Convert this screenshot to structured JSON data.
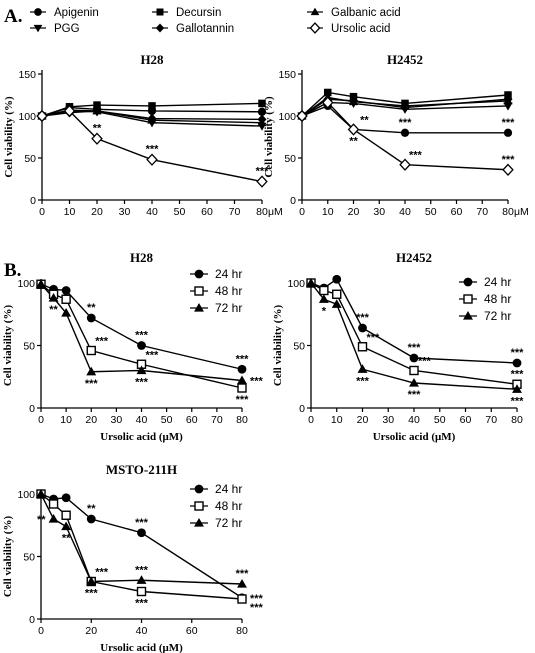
{
  "panel_labels": {
    "a": "A.",
    "b": "B."
  },
  "legend_a": [
    {
      "name": "Apigenin",
      "marker": "circle"
    },
    {
      "name": "Decursin",
      "marker": "square"
    },
    {
      "name": "Galbanic acid",
      "marker": "triangle-up"
    },
    {
      "name": "PGG",
      "marker": "triangle-down"
    },
    {
      "name": "Gallotannin",
      "marker": "diamond"
    },
    {
      "name": "Ursolic acid",
      "marker": "diamond-open"
    }
  ],
  "legend_b": [
    {
      "name": "24 hr",
      "marker": "circle"
    },
    {
      "name": "48 hr",
      "marker": "square-open"
    },
    {
      "name": "72 hr",
      "marker": "triangle-up"
    }
  ],
  "chart_data": [
    {
      "type": "line",
      "title": "H28",
      "ylabel": "Cell viability (%)",
      "xlabel": "",
      "x_unit": "μM",
      "x": [
        0,
        10,
        20,
        40,
        80
      ],
      "xticks": [
        "0",
        "10",
        "20",
        "30",
        "40",
        "50",
        "60",
        "70",
        "80"
      ],
      "yticks": [
        "0",
        "50",
        "100",
        "150"
      ],
      "xlim": [
        0,
        80
      ],
      "ylim": [
        0,
        150
      ],
      "series": [
        {
          "name": "Apigenin",
          "marker": "circle",
          "values": [
            100,
            110,
            108,
            106,
            105
          ]
        },
        {
          "name": "Decursin",
          "marker": "square",
          "values": [
            100,
            111,
            113,
            112,
            115
          ]
        },
        {
          "name": "Galbanic acid",
          "marker": "triangle-up",
          "values": [
            100,
            107,
            106,
            95,
            92
          ]
        },
        {
          "name": "PGG",
          "marker": "triangle-down",
          "values": [
            100,
            106,
            105,
            92,
            88
          ]
        },
        {
          "name": "Gallotannin",
          "marker": "diamond",
          "values": [
            100,
            104,
            106,
            97,
            96
          ]
        },
        {
          "name": "Ursolic acid",
          "marker": "diamond-open",
          "values": [
            100,
            106,
            73,
            48,
            22
          ]
        }
      ],
      "annotations": [
        {
          "x": 20,
          "y": 73,
          "text": "**",
          "pos": "above"
        },
        {
          "x": 40,
          "y": 48,
          "text": "***",
          "pos": "above"
        },
        {
          "x": 80,
          "y": 22,
          "text": "***",
          "pos": "above"
        }
      ]
    },
    {
      "type": "line",
      "title": "H2452",
      "ylabel": "Cell viability (%)",
      "xlabel": "",
      "x_unit": "μM",
      "x": [
        0,
        10,
        20,
        40,
        80
      ],
      "xticks": [
        "0",
        "10",
        "20",
        "30",
        "40",
        "50",
        "60",
        "70",
        "80"
      ],
      "yticks": [
        "0",
        "50",
        "100",
        "150"
      ],
      "xlim": [
        0,
        80
      ],
      "ylim": [
        0,
        150
      ],
      "series": [
        {
          "name": "Apigenin",
          "marker": "circle",
          "values": [
            100,
            112,
            84,
            80,
            80
          ]
        },
        {
          "name": "Decursin",
          "marker": "square",
          "values": [
            100,
            128,
            123,
            115,
            125
          ]
        },
        {
          "name": "Galbanic acid",
          "marker": "triangle-up",
          "values": [
            100,
            122,
            117,
            112,
            118
          ]
        },
        {
          "name": "PGG",
          "marker": "triangle-down",
          "values": [
            100,
            116,
            115,
            108,
            112
          ]
        },
        {
          "name": "Gallotannin",
          "marker": "diamond",
          "values": [
            100,
            120,
            118,
            110,
            120
          ]
        },
        {
          "name": "Ursolic acid",
          "marker": "diamond-open",
          "values": [
            100,
            116,
            84,
            42,
            36
          ]
        }
      ],
      "annotations": [
        {
          "x": 21,
          "y": 84,
          "text": "**",
          "pos": "above-right"
        },
        {
          "x": 20,
          "y": 84,
          "text": "**",
          "pos": "below"
        },
        {
          "x": 40,
          "y": 80,
          "text": "***",
          "pos": "above"
        },
        {
          "x": 80,
          "y": 80,
          "text": "***",
          "pos": "above"
        },
        {
          "x": 40,
          "y": 42,
          "text": "***",
          "pos": "above-right"
        },
        {
          "x": 80,
          "y": 36,
          "text": "***",
          "pos": "above"
        }
      ]
    },
    {
      "type": "line",
      "title": "H28",
      "ylabel": "Cell viability (%)",
      "xlabel": "Ursolic acid (μM)",
      "x": [
        0,
        5,
        10,
        20,
        40,
        80
      ],
      "xticks": [
        "0",
        "10",
        "20",
        "30",
        "40",
        "50",
        "60",
        "70",
        "80"
      ],
      "yticks": [
        "0",
        "50",
        "100"
      ],
      "xlim": [
        0,
        80
      ],
      "ylim": [
        0,
        100
      ],
      "series": [
        {
          "name": "24 hr",
          "marker": "circle",
          "values": [
            99,
            95,
            94,
            72,
            50,
            31
          ]
        },
        {
          "name": "48 hr",
          "marker": "square-open",
          "values": [
            99,
            91,
            87,
            46,
            35,
            16
          ]
        },
        {
          "name": "72 hr",
          "marker": "triangle-up",
          "values": [
            99,
            88,
            76,
            29,
            30,
            22
          ]
        }
      ],
      "annotations": [
        {
          "x": 20,
          "y": 72,
          "text": "**",
          "pos": "above"
        },
        {
          "x": 40,
          "y": 50,
          "text": "***",
          "pos": "above"
        },
        {
          "x": 80,
          "y": 31,
          "text": "***",
          "pos": "above"
        },
        {
          "x": 5,
          "y": 88,
          "text": "**",
          "pos": "below"
        },
        {
          "x": 20,
          "y": 46,
          "text": "***",
          "pos": "above-right"
        },
        {
          "x": 40,
          "y": 35,
          "text": "***",
          "pos": "above-right"
        },
        {
          "x": 20,
          "y": 29,
          "text": "***",
          "pos": "below"
        },
        {
          "x": 40,
          "y": 30,
          "text": "***",
          "pos": "below"
        },
        {
          "x": 80,
          "y": 22,
          "text": "***",
          "pos": "right"
        },
        {
          "x": 80,
          "y": 16,
          "text": "***",
          "pos": "below"
        }
      ]
    },
    {
      "type": "line",
      "title": "H2452",
      "ylabel": "Cell viability (%)",
      "xlabel": "Ursolic acid (μM)",
      "x": [
        0,
        5,
        10,
        20,
        40,
        80
      ],
      "xticks": [
        "0",
        "10",
        "20",
        "30",
        "40",
        "50",
        "60",
        "70",
        "80"
      ],
      "yticks": [
        "0",
        "50",
        "100"
      ],
      "xlim": [
        0,
        80
      ],
      "ylim": [
        0,
        100
      ],
      "series": [
        {
          "name": "24 hr",
          "marker": "circle",
          "values": [
            100,
            96,
            103,
            64,
            40,
            36
          ]
        },
        {
          "name": "48 hr",
          "marker": "square-open",
          "values": [
            100,
            94,
            91,
            49,
            30,
            19
          ]
        },
        {
          "name": "72 hr",
          "marker": "triangle-up",
          "values": [
            100,
            87,
            83,
            31,
            20,
            15
          ]
        }
      ],
      "annotations": [
        {
          "x": 20,
          "y": 64,
          "text": "***",
          "pos": "above"
        },
        {
          "x": 40,
          "y": 40,
          "text": "***",
          "pos": "above"
        },
        {
          "x": 80,
          "y": 36,
          "text": "***",
          "pos": "above"
        },
        {
          "x": 5,
          "y": 87,
          "text": "*",
          "pos": "below"
        },
        {
          "x": 20,
          "y": 49,
          "text": "***",
          "pos": "above-right"
        },
        {
          "x": 40,
          "y": 30,
          "text": "***",
          "pos": "above-right"
        },
        {
          "x": 20,
          "y": 31,
          "text": "***",
          "pos": "below"
        },
        {
          "x": 40,
          "y": 20,
          "text": "***",
          "pos": "below"
        },
        {
          "x": 80,
          "y": 19,
          "text": "***",
          "pos": "above"
        },
        {
          "x": 80,
          "y": 15,
          "text": "***",
          "pos": "below"
        }
      ]
    },
    {
      "type": "line",
      "title": "MSTO-211H",
      "ylabel": "Cell viability (%)",
      "xlabel": "Ursolic acid (μM)",
      "x": [
        0,
        5,
        10,
        20,
        40,
        80
      ],
      "xticks": [
        "0",
        "20",
        "40",
        "60",
        "80"
      ],
      "yticks": [
        "0",
        "50",
        "100"
      ],
      "xlim": [
        0,
        80
      ],
      "ylim": [
        0,
        100
      ],
      "series": [
        {
          "name": "24 hr",
          "marker": "circle",
          "values": [
            100,
            96,
            97,
            80,
            69,
            17
          ]
        },
        {
          "name": "48 hr",
          "marker": "square-open",
          "values": [
            100,
            92,
            83,
            30,
            22,
            16
          ]
        },
        {
          "name": "72 hr",
          "marker": "triangle-up",
          "values": [
            100,
            80,
            74,
            30,
            31,
            28
          ]
        }
      ],
      "annotations": [
        {
          "x": 20,
          "y": 80,
          "text": "**",
          "pos": "above"
        },
        {
          "x": 40,
          "y": 69,
          "text": "***",
          "pos": "above"
        },
        {
          "x": 5,
          "y": 80,
          "text": "**",
          "pos": "left"
        },
        {
          "x": 10,
          "y": 74,
          "text": "**",
          "pos": "below"
        },
        {
          "x": 20,
          "y": 30,
          "text": "***",
          "pos": "above-right"
        },
        {
          "x": 40,
          "y": 31,
          "text": "***",
          "pos": "above"
        },
        {
          "x": 80,
          "y": 28,
          "text": "***",
          "pos": "above"
        },
        {
          "x": 20,
          "y": 30,
          "text": "***",
          "pos": "below"
        },
        {
          "x": 40,
          "y": 22,
          "text": "***",
          "pos": "below"
        },
        {
          "x": 80,
          "y": 17,
          "text": "***",
          "pos": "right"
        },
        {
          "x": 80,
          "y": 16,
          "text": "***",
          "pos": "below-right"
        }
      ]
    }
  ]
}
